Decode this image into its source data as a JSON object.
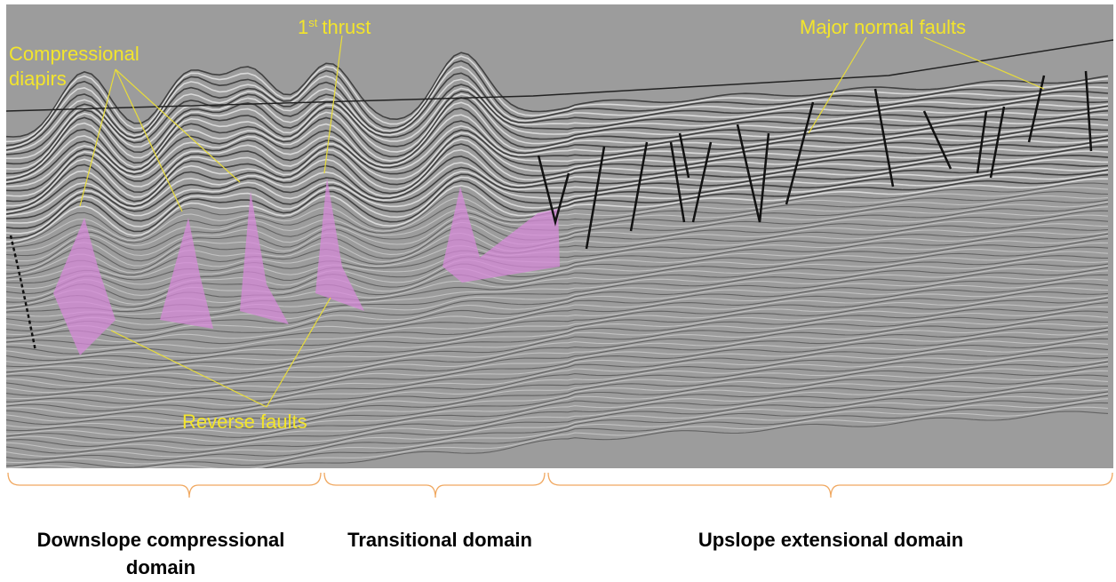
{
  "annotations": {
    "compressional_diapirs": [
      "Compressional",
      "diapirs"
    ],
    "first_thrust": {
      "number": "1",
      "superscript": "st",
      "rest": "thrust"
    },
    "major_normal_faults": "Major normal faults",
    "reverse_faults": "Reverse faults"
  },
  "domains": [
    {
      "lines": [
        "Downslope compressional",
        "domain"
      ]
    },
    {
      "lines": [
        "Transitional domain"
      ]
    },
    {
      "lines": [
        "Upslope extensional domain"
      ]
    }
  ]
}
